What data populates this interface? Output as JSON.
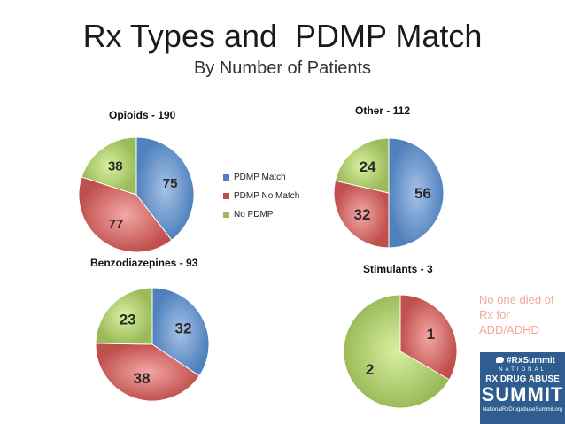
{
  "title": "Rx Types and  PDMP Match",
  "subtitle": "By Number of Patients",
  "colors": {
    "match": "#4F81BD",
    "no_match": "#C0504D",
    "no_pdmp": "#9BBB59"
  },
  "legend": [
    "PDMP Match",
    "PDMP No Match",
    "No PDMP"
  ],
  "chart_data": [
    {
      "type": "pie",
      "title": "Opioids - 190",
      "labels": [
        "PDMP Match",
        "PDMP No Match",
        "No PDMP"
      ],
      "values": [
        75,
        77,
        38
      ]
    },
    {
      "type": "pie",
      "title": "Other - 112",
      "labels": [
        "PDMP Match",
        "PDMP No Match",
        "No PDMP"
      ],
      "values": [
        56,
        32,
        24
      ]
    },
    {
      "type": "pie",
      "title": "Benzodiazepines - 93",
      "labels": [
        "PDMP Match",
        "PDMP No Match",
        "No PDMP"
      ],
      "values": [
        32,
        38,
        23
      ]
    },
    {
      "type": "pie",
      "title": "Stimulants - 3",
      "labels": [
        "PDMP No Match",
        "No PDMP"
      ],
      "values": [
        1,
        2
      ]
    }
  ],
  "note": "No one died of Rx for ADD/ADHD",
  "logo": {
    "hashtag": "#RxSummit",
    "national": "NATIONAL",
    "line1": "RX DRUG ABUSE",
    "line2": "SUMMIT",
    "url": "NationalRxDrugAbuseSummit.org"
  }
}
